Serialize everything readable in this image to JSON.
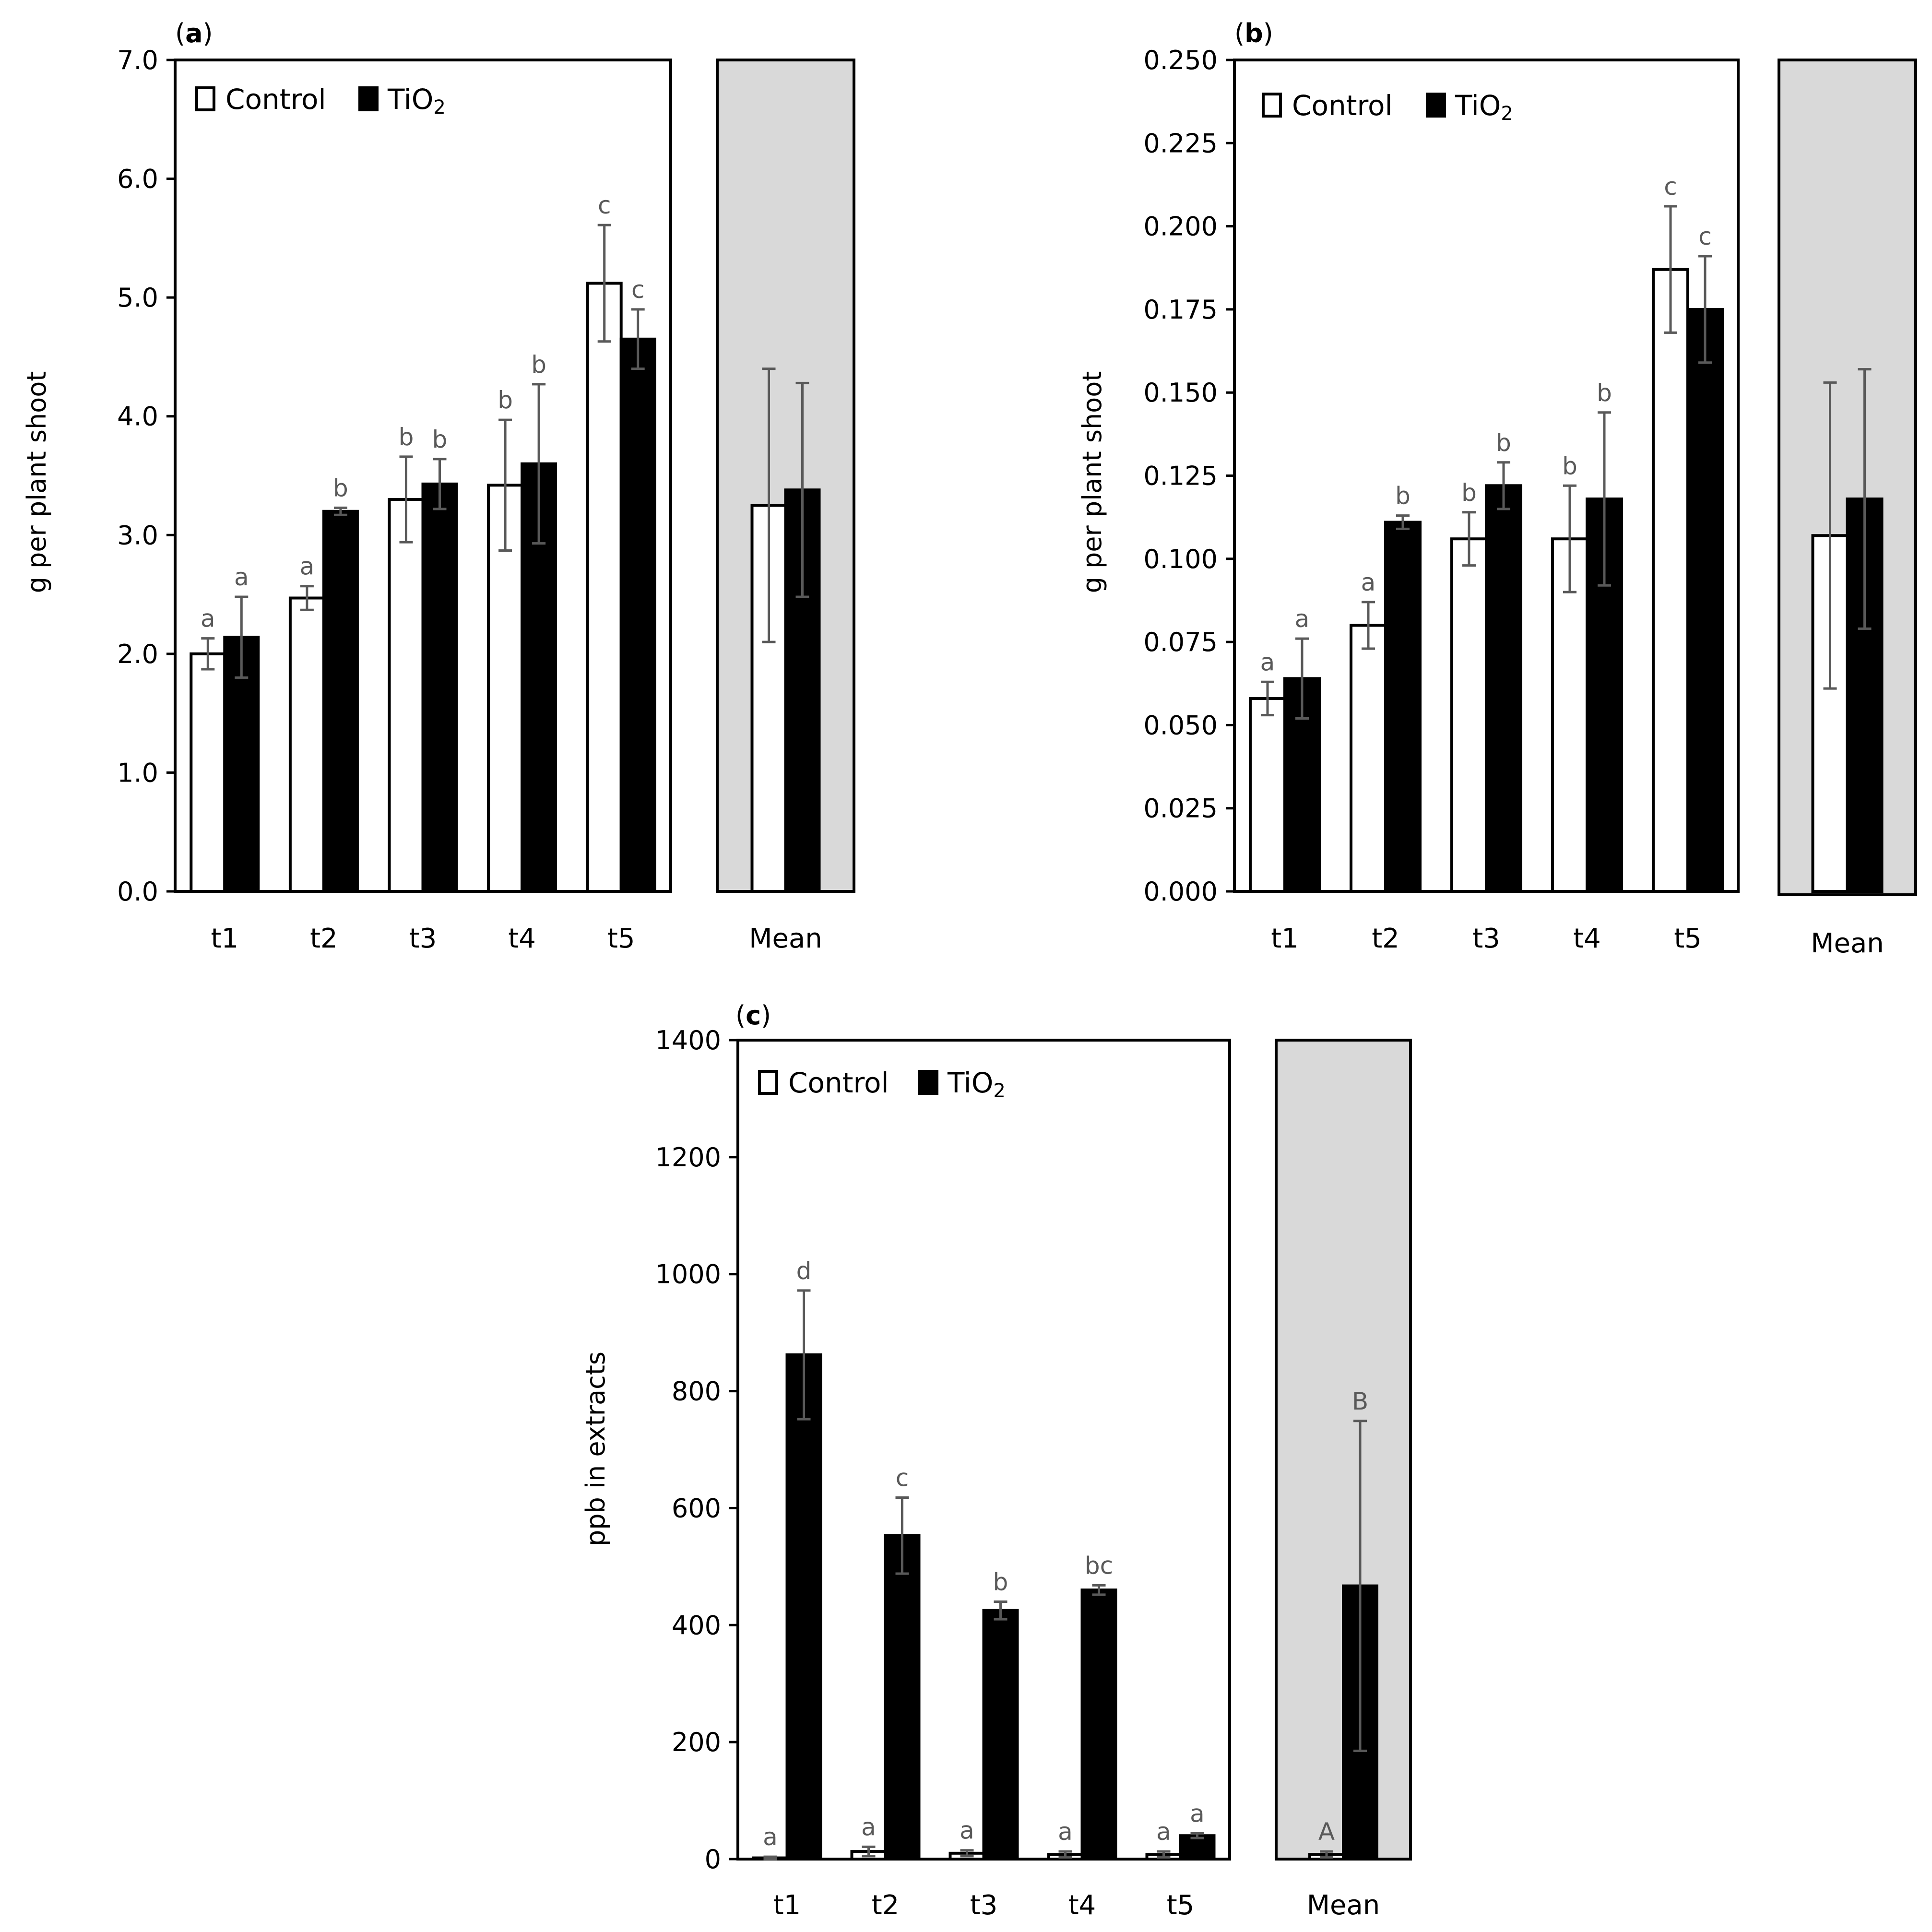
{
  "legend": {
    "control": "Control",
    "tio2_base": "TiO",
    "tio2_sub": "2"
  },
  "colors": {
    "control": "#ffffff",
    "tio2": "#000000",
    "mean_bg": "#d9d9d9",
    "error": "#595959"
  },
  "chart_data": [
    {
      "type": "bar",
      "panel": "(a)",
      "panel_letter": "a",
      "ylabel": "g per plant shoot",
      "ylim": [
        0,
        7
      ],
      "yticks": [
        "0.0",
        "1.0",
        "2.0",
        "3.0",
        "4.0",
        "5.0",
        "6.0",
        "7.0"
      ],
      "categories": [
        "t1",
        "t2",
        "t3",
        "t4",
        "t5"
      ],
      "series": [
        {
          "name": "Control",
          "values": [
            2.0,
            2.47,
            3.3,
            3.42,
            5.12
          ],
          "errors": [
            0.13,
            0.1,
            0.36,
            0.55,
            0.49
          ],
          "labels": [
            "a",
            "a",
            "b",
            "b",
            "c"
          ]
        },
        {
          "name": "TiO2",
          "values": [
            2.14,
            3.2,
            3.43,
            3.6,
            4.65
          ],
          "errors": [
            0.34,
            0.03,
            0.21,
            0.67,
            0.25
          ],
          "labels": [
            "a",
            "b",
            "b",
            "b",
            "c"
          ]
        }
      ],
      "mean": {
        "label": "Mean",
        "values": [
          3.25,
          3.38
        ],
        "errors": [
          1.15,
          0.9
        ],
        "labels": [
          "",
          ""
        ]
      }
    },
    {
      "type": "bar",
      "panel": "(b)",
      "panel_letter": "b",
      "ylabel": "g per plant shoot",
      "ylim": [
        0,
        0.25
      ],
      "yticks": [
        "0.000",
        "0.025",
        "0.050",
        "0.075",
        "0.100",
        "0.125",
        "0.150",
        "0.175",
        "0.200",
        "0.225",
        "0.250"
      ],
      "categories": [
        "t1",
        "t2",
        "t3",
        "t4",
        "t5"
      ],
      "series": [
        {
          "name": "Control",
          "values": [
            0.058,
            0.08,
            0.106,
            0.106,
            0.187
          ],
          "errors": [
            0.005,
            0.007,
            0.008,
            0.016,
            0.019
          ],
          "labels": [
            "a",
            "a",
            "b",
            "b",
            "c"
          ]
        },
        {
          "name": "TiO2",
          "values": [
            0.064,
            0.111,
            0.122,
            0.118,
            0.175
          ],
          "errors": [
            0.012,
            0.002,
            0.007,
            0.026,
            0.016
          ],
          "labels": [
            "a",
            "b",
            "b",
            "b",
            "c"
          ]
        }
      ],
      "mean": {
        "label": "Mean",
        "values": [
          0.107,
          0.118
        ],
        "errors": [
          0.046,
          0.039
        ],
        "labels": [
          "",
          ""
        ]
      }
    },
    {
      "type": "bar",
      "panel": "(c)",
      "panel_letter": "c",
      "ylabel": "ppb in extracts",
      "ylim": [
        0,
        1400
      ],
      "yticks": [
        "0",
        "200",
        "400",
        "600",
        "800",
        "1000",
        "1200",
        "1400"
      ],
      "categories": [
        "t1",
        "t2",
        "t3",
        "t4",
        "t5"
      ],
      "series": [
        {
          "name": "Control",
          "values": [
            2,
            13,
            10,
            8,
            8
          ],
          "errors": [
            2,
            8,
            5,
            5,
            5
          ],
          "labels": [
            "a",
            "a",
            "a",
            "a",
            "a"
          ]
        },
        {
          "name": "TiO2",
          "values": [
            862,
            553,
            425,
            460,
            40
          ],
          "errors": [
            110,
            65,
            15,
            8,
            4
          ],
          "labels": [
            "d",
            "c",
            "b",
            "bc",
            "a"
          ]
        }
      ],
      "mean": {
        "label": "Mean",
        "values": [
          8,
          467
        ],
        "errors": [
          5,
          282
        ],
        "labels": [
          "A",
          "B"
        ]
      }
    }
  ]
}
